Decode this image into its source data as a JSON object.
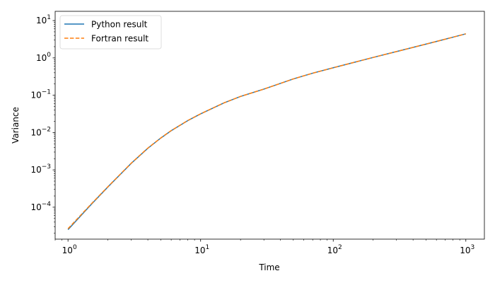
{
  "chart_data": {
    "type": "line",
    "xlabel": "Time",
    "ylabel": "Variance",
    "xscale": "log",
    "yscale": "log",
    "xlim": [
      0.8,
      1380
    ],
    "ylim": [
      1.396e-05,
      17.7
    ],
    "grid": false,
    "legend_position": "top-left",
    "x_ticks": [
      {
        "value": 1,
        "base": "10",
        "exp": "0"
      },
      {
        "value": 10,
        "base": "10",
        "exp": "1"
      },
      {
        "value": 100,
        "base": "10",
        "exp": "2"
      },
      {
        "value": 1000,
        "base": "10",
        "exp": "3"
      }
    ],
    "y_ticks": [
      {
        "value": 0.0001,
        "base": "10",
        "exp": "−4"
      },
      {
        "value": 0.001,
        "base": "10",
        "exp": "−3"
      },
      {
        "value": 0.01,
        "base": "10",
        "exp": "−2"
      },
      {
        "value": 0.1,
        "base": "10",
        "exp": "−1"
      },
      {
        "value": 1,
        "base": "10",
        "exp": "0"
      },
      {
        "value": 10,
        "base": "10",
        "exp": "1"
      }
    ],
    "x": [
      1,
      1.5,
      2,
      3,
      4,
      5,
      6,
      8,
      10,
      15,
      20,
      30,
      50,
      70,
      100,
      150,
      200,
      300,
      500,
      700,
      1000
    ],
    "series": [
      {
        "name": "Python result",
        "color": "#1f77b4",
        "style": "solid",
        "values": [
          2.5e-05,
          0.00012,
          0.00035,
          0.0015,
          0.0038,
          0.0071,
          0.0112,
          0.0209,
          0.0317,
          0.0624,
          0.0929,
          0.146,
          0.273,
          0.39,
          0.545,
          0.79,
          1.03,
          1.48,
          2.34,
          3.18,
          4.42
        ]
      },
      {
        "name": "Fortran result",
        "color": "#ff7f0e",
        "style": "dashed",
        "values": [
          2.65e-05,
          0.000123,
          0.000355,
          0.00152,
          0.00384,
          0.00715,
          0.0113,
          0.021,
          0.0318,
          0.0625,
          0.093,
          0.146,
          0.273,
          0.39,
          0.545,
          0.79,
          1.03,
          1.48,
          2.34,
          3.18,
          4.42
        ]
      }
    ]
  }
}
